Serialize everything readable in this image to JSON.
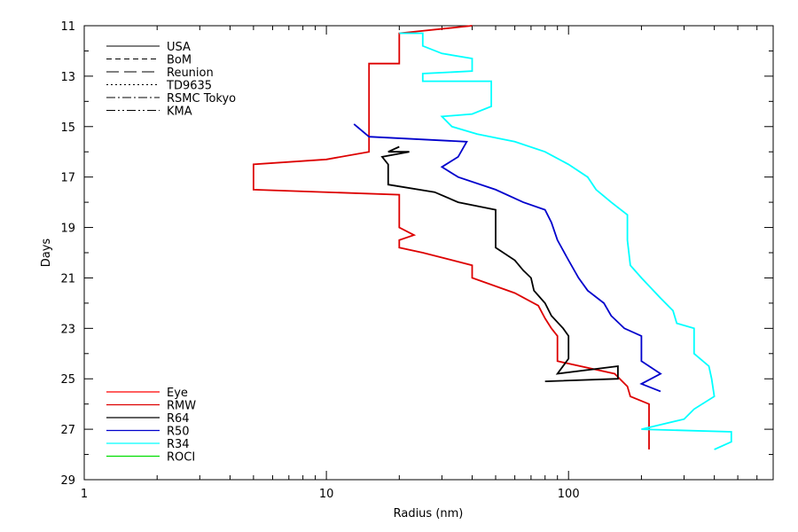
{
  "chart_data": {
    "type": "line",
    "title": "",
    "xlabel": "Radius (nm)",
    "ylabel": "Days",
    "x_scale": "log",
    "xlim": [
      1,
      700
    ],
    "ylim": [
      29,
      11
    ],
    "x_tick_labels": [
      {
        "value": 1,
        "label": "1"
      },
      {
        "value": 10,
        "label": "10"
      },
      {
        "value": 100,
        "label": "100"
      }
    ],
    "y_ticks": [
      11,
      13,
      15,
      17,
      19,
      21,
      23,
      25,
      27,
      29
    ],
    "grid": false,
    "agency_legend": {
      "placement": "top-left",
      "entries": [
        {
          "name": "USA",
          "dash": "none"
        },
        {
          "name": "BoM",
          "dash": "6,4"
        },
        {
          "name": "Reunion",
          "dash": "14,6"
        },
        {
          "name": "TD9635",
          "dash": "2,3"
        },
        {
          "name": "RSMC Tokyo",
          "dash": "10,3,2,3"
        },
        {
          "name": "KMA",
          "dash": "10,3,2,3,2,3"
        }
      ]
    },
    "series_legend_placement": "bottom-left",
    "series": [
      {
        "name": "Eye",
        "color": "#ff0000",
        "points": []
      },
      {
        "name": "RMW",
        "color": "#dd0000",
        "points": [
          [
            40,
            11.0
          ],
          [
            20,
            11.3
          ],
          [
            20,
            12.5
          ],
          [
            15,
            12.5
          ],
          [
            15,
            16.0
          ],
          [
            10,
            16.3
          ],
          [
            5,
            16.5
          ],
          [
            5,
            17.5
          ],
          [
            20,
            17.7
          ],
          [
            20,
            19.0
          ],
          [
            23,
            19.3
          ],
          [
            20,
            19.5
          ],
          [
            20,
            19.8
          ],
          [
            25,
            20.0
          ],
          [
            40,
            20.5
          ],
          [
            40,
            21.0
          ],
          [
            60,
            21.6
          ],
          [
            75,
            22.1
          ],
          [
            80,
            22.6
          ],
          [
            85,
            23.0
          ],
          [
            90,
            23.3
          ],
          [
            90,
            24.3
          ],
          [
            155,
            24.8
          ],
          [
            175,
            25.3
          ],
          [
            180,
            25.7
          ],
          [
            215,
            26.0
          ],
          [
            215,
            27.8
          ]
        ]
      },
      {
        "name": "R64",
        "color": "#000000",
        "points": [
          [
            20,
            15.8
          ],
          [
            18,
            16.0
          ],
          [
            22,
            16.0
          ],
          [
            17,
            16.2
          ],
          [
            18,
            16.5
          ],
          [
            18,
            17.3
          ],
          [
            28,
            17.6
          ],
          [
            35,
            18.0
          ],
          [
            50,
            18.3
          ],
          [
            50,
            19.8
          ],
          [
            60,
            20.3
          ],
          [
            65,
            20.7
          ],
          [
            70,
            21.0
          ],
          [
            72,
            21.5
          ],
          [
            80,
            22.0
          ],
          [
            85,
            22.5
          ],
          [
            95,
            23.0
          ],
          [
            100,
            23.3
          ],
          [
            100,
            24.2
          ],
          [
            90,
            24.8
          ],
          [
            160,
            24.5
          ],
          [
            160,
            25.0
          ],
          [
            80,
            25.1
          ]
        ]
      },
      {
        "name": "R50",
        "color": "#0000cc",
        "points": [
          [
            13,
            14.9
          ],
          [
            15,
            15.4
          ],
          [
            38,
            15.6
          ],
          [
            35,
            16.2
          ],
          [
            30,
            16.6
          ],
          [
            35,
            17.0
          ],
          [
            50,
            17.5
          ],
          [
            65,
            18.0
          ],
          [
            80,
            18.3
          ],
          [
            85,
            18.8
          ],
          [
            90,
            19.5
          ],
          [
            100,
            20.3
          ],
          [
            110,
            21.0
          ],
          [
            120,
            21.5
          ],
          [
            140,
            22.0
          ],
          [
            150,
            22.5
          ],
          [
            170,
            23.0
          ],
          [
            200,
            23.3
          ],
          [
            200,
            24.3
          ],
          [
            240,
            24.8
          ],
          [
            200,
            25.2
          ],
          [
            240,
            25.5
          ]
        ]
      },
      {
        "name": "R34",
        "color": "#00ffff",
        "points": [
          [
            20,
            11.3
          ],
          [
            25,
            11.3
          ],
          [
            25,
            11.8
          ],
          [
            30,
            12.1
          ],
          [
            40,
            12.3
          ],
          [
            40,
            12.8
          ],
          [
            25,
            12.9
          ],
          [
            25,
            13.2
          ],
          [
            48,
            13.2
          ],
          [
            48,
            14.2
          ],
          [
            40,
            14.5
          ],
          [
            30,
            14.6
          ],
          [
            33,
            15.0
          ],
          [
            42,
            15.3
          ],
          [
            60,
            15.6
          ],
          [
            80,
            16.0
          ],
          [
            100,
            16.5
          ],
          [
            120,
            17.0
          ],
          [
            130,
            17.5
          ],
          [
            150,
            18.0
          ],
          [
            175,
            18.5
          ],
          [
            175,
            19.5
          ],
          [
            180,
            20.5
          ],
          [
            200,
            21.0
          ],
          [
            240,
            21.8
          ],
          [
            270,
            22.3
          ],
          [
            280,
            22.8
          ],
          [
            330,
            23.0
          ],
          [
            330,
            24.0
          ],
          [
            380,
            24.5
          ],
          [
            390,
            25.0
          ],
          [
            400,
            25.7
          ],
          [
            330,
            26.2
          ],
          [
            300,
            26.6
          ],
          [
            200,
            27.0
          ],
          [
            470,
            27.1
          ],
          [
            470,
            27.5
          ],
          [
            400,
            27.8
          ]
        ]
      },
      {
        "name": "ROCI",
        "color": "#00dd00",
        "points": []
      }
    ]
  }
}
